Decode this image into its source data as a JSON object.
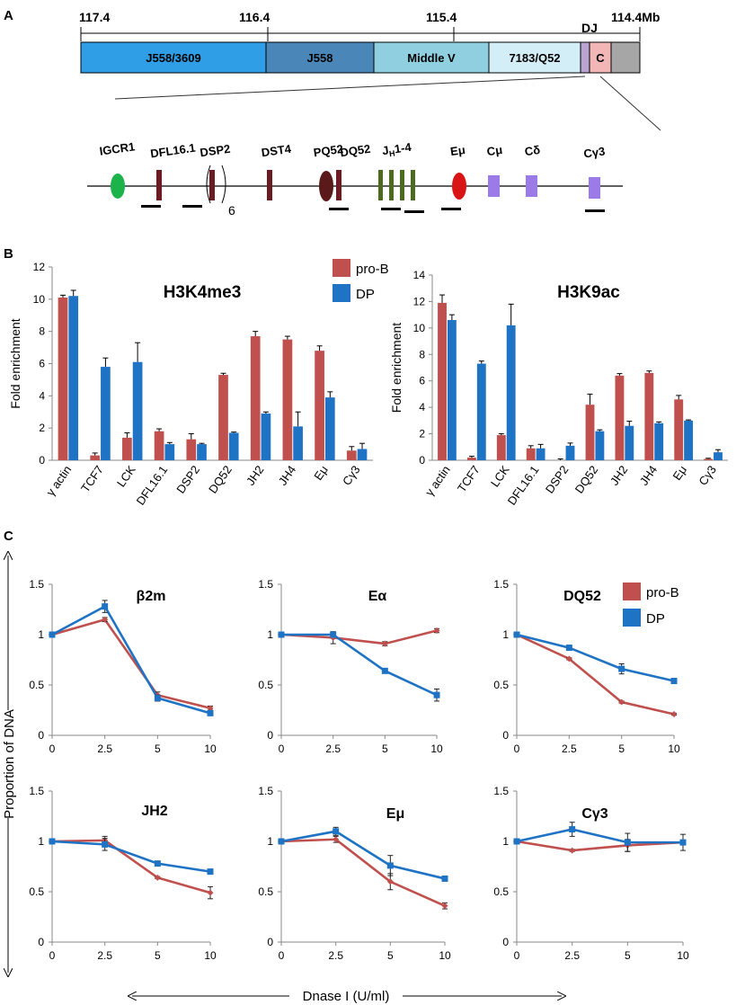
{
  "panel_labels": {
    "a": "A",
    "b": "B",
    "c": "C"
  },
  "panel_a": {
    "scale_labels": [
      "117.4",
      "116.4",
      "115.4",
      "DJ",
      "114.4Mb"
    ],
    "segments": [
      {
        "label": "J558/3609",
        "color": "#2f9ee6"
      },
      {
        "label": "J558",
        "color": "#4a86b8"
      },
      {
        "label": "Middle V",
        "color": "#8fcfe0"
      },
      {
        "label": "7183/Q52",
        "color": "#d4eef8"
      },
      {
        "label": "",
        "color": "#b7a4cf"
      },
      {
        "label": "C",
        "color": "#f2b6b6"
      },
      {
        "label": "",
        "color": "#a6a6a6"
      }
    ],
    "element_labels": {
      "igcr1": "IGCR1",
      "dfl161": "DFL16.1",
      "dsp2": "DSP2",
      "dsp2_copies": "6",
      "dst4": "DST4",
      "pq52": "PQ52",
      "dq52": "DQ52",
      "jh_main": "J",
      "jh_sub": "H",
      "jh_range": "1-4",
      "emu": "Eμ",
      "cmu": "Cμ",
      "cdelta": "Cδ",
      "cgamma3": "Cγ3"
    },
    "colors": {
      "igcr1": "#1bb34a",
      "d_gene": "#6b1c22",
      "pq52": "#5a1a1a",
      "jh": "#4d6b1e",
      "emu": "#d91414",
      "constant": "#9b7be8"
    }
  },
  "legend": {
    "pro_b": "pro-B",
    "dp": "DP"
  },
  "colors": {
    "pro_b": "#c0504d",
    "dp": "#1f73c4"
  },
  "panel_c_labels": {
    "ylabel": "Proportion of DNA",
    "xlabel": "Dnase I (U/ml)"
  },
  "chart_data": [
    {
      "type": "bar",
      "title": "H3K4me3",
      "ylabel": "Fold enrichment",
      "ylim": [
        0,
        12
      ],
      "yticks": [
        0,
        2,
        4,
        6,
        8,
        10,
        12
      ],
      "categories": [
        "γ actin",
        "TCF7",
        "LCK",
        "DFL16.1",
        "DSP2",
        "DQ52",
        "JH2",
        "JH4",
        "Eμ",
        "Cγ3"
      ],
      "series": [
        {
          "name": "pro-B",
          "values": [
            10.1,
            0.3,
            1.4,
            1.8,
            1.3,
            5.3,
            7.7,
            7.5,
            6.8,
            0.6
          ],
          "errors": [
            0.15,
            0.15,
            0.3,
            0.15,
            0.35,
            0.1,
            0.3,
            0.2,
            0.3,
            0.25
          ]
        },
        {
          "name": "DP",
          "values": [
            10.2,
            5.8,
            6.1,
            1.0,
            1.0,
            1.7,
            2.9,
            2.1,
            3.9,
            0.7
          ],
          "errors": [
            0.35,
            0.55,
            1.2,
            0.1,
            0.05,
            0.05,
            0.1,
            0.9,
            0.35,
            0.35
          ]
        }
      ]
    },
    {
      "type": "bar",
      "title": "H3K9ac",
      "ylabel": "Fold enrichment",
      "ylim": [
        0,
        14
      ],
      "yticks": [
        0,
        2,
        4,
        6,
        8,
        10,
        12,
        14
      ],
      "categories": [
        "γ actin",
        "TCF7",
        "LCK",
        "DFL16.1",
        "DSP2",
        "DQ52",
        "JH2",
        "JH4",
        "Eμ",
        "Cγ3"
      ],
      "series": [
        {
          "name": "pro-B",
          "values": [
            11.9,
            0.2,
            1.9,
            0.9,
            0.0,
            4.2,
            6.4,
            6.6,
            4.6,
            0.1
          ],
          "errors": [
            0.6,
            0.1,
            0.1,
            0.2,
            0.1,
            0.8,
            0.15,
            0.15,
            0.3,
            0.05
          ]
        },
        {
          "name": "DP",
          "values": [
            10.6,
            7.3,
            10.2,
            0.9,
            1.1,
            2.2,
            2.6,
            2.8,
            3.0,
            0.6
          ],
          "errors": [
            0.4,
            0.2,
            1.6,
            0.3,
            0.2,
            0.1,
            0.35,
            0.1,
            0.05,
            0.2
          ]
        }
      ]
    },
    {
      "type": "line",
      "title": "β2m",
      "x": [
        0,
        2.5,
        5,
        10
      ],
      "xticks": [
        "0",
        "2.5",
        "5",
        "10"
      ],
      "ylim": [
        0,
        1.5
      ],
      "yticks": [
        "0",
        "0.5",
        "1",
        "1.5"
      ],
      "series": [
        {
          "name": "pro-B",
          "values": [
            1.0,
            1.15,
            0.4,
            0.27
          ],
          "errors": [
            0.0,
            0.02,
            0.03,
            0.02
          ]
        },
        {
          "name": "DP",
          "values": [
            1.0,
            1.28,
            0.37,
            0.22
          ],
          "errors": [
            0.0,
            0.06,
            0.03,
            0.02
          ]
        }
      ]
    },
    {
      "type": "line",
      "title": "Eα",
      "x": [
        0,
        2.5,
        5,
        10
      ],
      "xticks": [
        "0",
        "2.5",
        "5",
        "10"
      ],
      "ylim": [
        0,
        1.5
      ],
      "yticks": [
        "0",
        "0.5",
        "1",
        "1.5"
      ],
      "series": [
        {
          "name": "pro-B",
          "values": [
            1.0,
            0.97,
            0.91,
            1.04
          ],
          "errors": [
            0.0,
            0.06,
            0.02,
            0.02
          ]
        },
        {
          "name": "DP",
          "values": [
            1.0,
            1.0,
            0.64,
            0.4
          ],
          "errors": [
            0.0,
            0.02,
            0.02,
            0.06
          ]
        }
      ]
    },
    {
      "type": "line",
      "title": "DQ52",
      "x": [
        0,
        2.5,
        5,
        10
      ],
      "xticks": [
        "0",
        "2.5",
        "5",
        "10"
      ],
      "ylim": [
        0,
        1.5
      ],
      "yticks": [
        "0",
        "0.5",
        "1",
        "1.5"
      ],
      "series": [
        {
          "name": "pro-B",
          "values": [
            1.0,
            0.76,
            0.33,
            0.21
          ],
          "errors": [
            0.0,
            0.01,
            0.01,
            0.01
          ]
        },
        {
          "name": "DP",
          "values": [
            1.0,
            0.87,
            0.66,
            0.54
          ],
          "errors": [
            0.0,
            0.02,
            0.05,
            0.02
          ]
        }
      ]
    },
    {
      "type": "line",
      "title": "JH2",
      "x": [
        0,
        2.5,
        5,
        10
      ],
      "xticks": [
        "0",
        "2.5",
        "5",
        "10"
      ],
      "ylim": [
        0,
        1.5
      ],
      "yticks": [
        "0",
        "0.5",
        "1",
        "1.5"
      ],
      "series": [
        {
          "name": "pro-B",
          "values": [
            1.0,
            1.01,
            0.64,
            0.49
          ],
          "errors": [
            0.0,
            0.04,
            0.01,
            0.06
          ]
        },
        {
          "name": "DP",
          "values": [
            1.0,
            0.97,
            0.78,
            0.7
          ],
          "errors": [
            0.0,
            0.06,
            0.02,
            0.02
          ]
        }
      ]
    },
    {
      "type": "line",
      "title": "Eμ",
      "x": [
        0,
        2.5,
        5,
        10
      ],
      "xticks": [
        "0",
        "2.5",
        "5",
        "10"
      ],
      "ylim": [
        0,
        1.5
      ],
      "yticks": [
        "0",
        "0.5",
        "1",
        "1.5"
      ],
      "series": [
        {
          "name": "pro-B",
          "values": [
            1.0,
            1.02,
            0.6,
            0.36
          ],
          "errors": [
            0.0,
            0.03,
            0.08,
            0.03
          ]
        },
        {
          "name": "DP",
          "values": [
            1.0,
            1.1,
            0.76,
            0.63
          ],
          "errors": [
            0.0,
            0.04,
            0.1,
            0.02
          ]
        }
      ]
    },
    {
      "type": "line",
      "title": "Cγ3",
      "x": [
        0,
        2.5,
        5,
        10
      ],
      "xticks": [
        "0",
        "2.5",
        "5",
        "10"
      ],
      "ylim": [
        0,
        1.5
      ],
      "yticks": [
        "0",
        "0.5",
        "1",
        "1.5"
      ],
      "series": [
        {
          "name": "pro-B",
          "values": [
            1.0,
            0.91,
            0.96,
            0.99
          ],
          "errors": [
            0.0,
            0.01,
            0.06,
            0.02
          ]
        },
        {
          "name": "DP",
          "values": [
            1.0,
            1.12,
            0.99,
            0.99
          ],
          "errors": [
            0.0,
            0.07,
            0.09,
            0.08
          ]
        }
      ]
    }
  ]
}
